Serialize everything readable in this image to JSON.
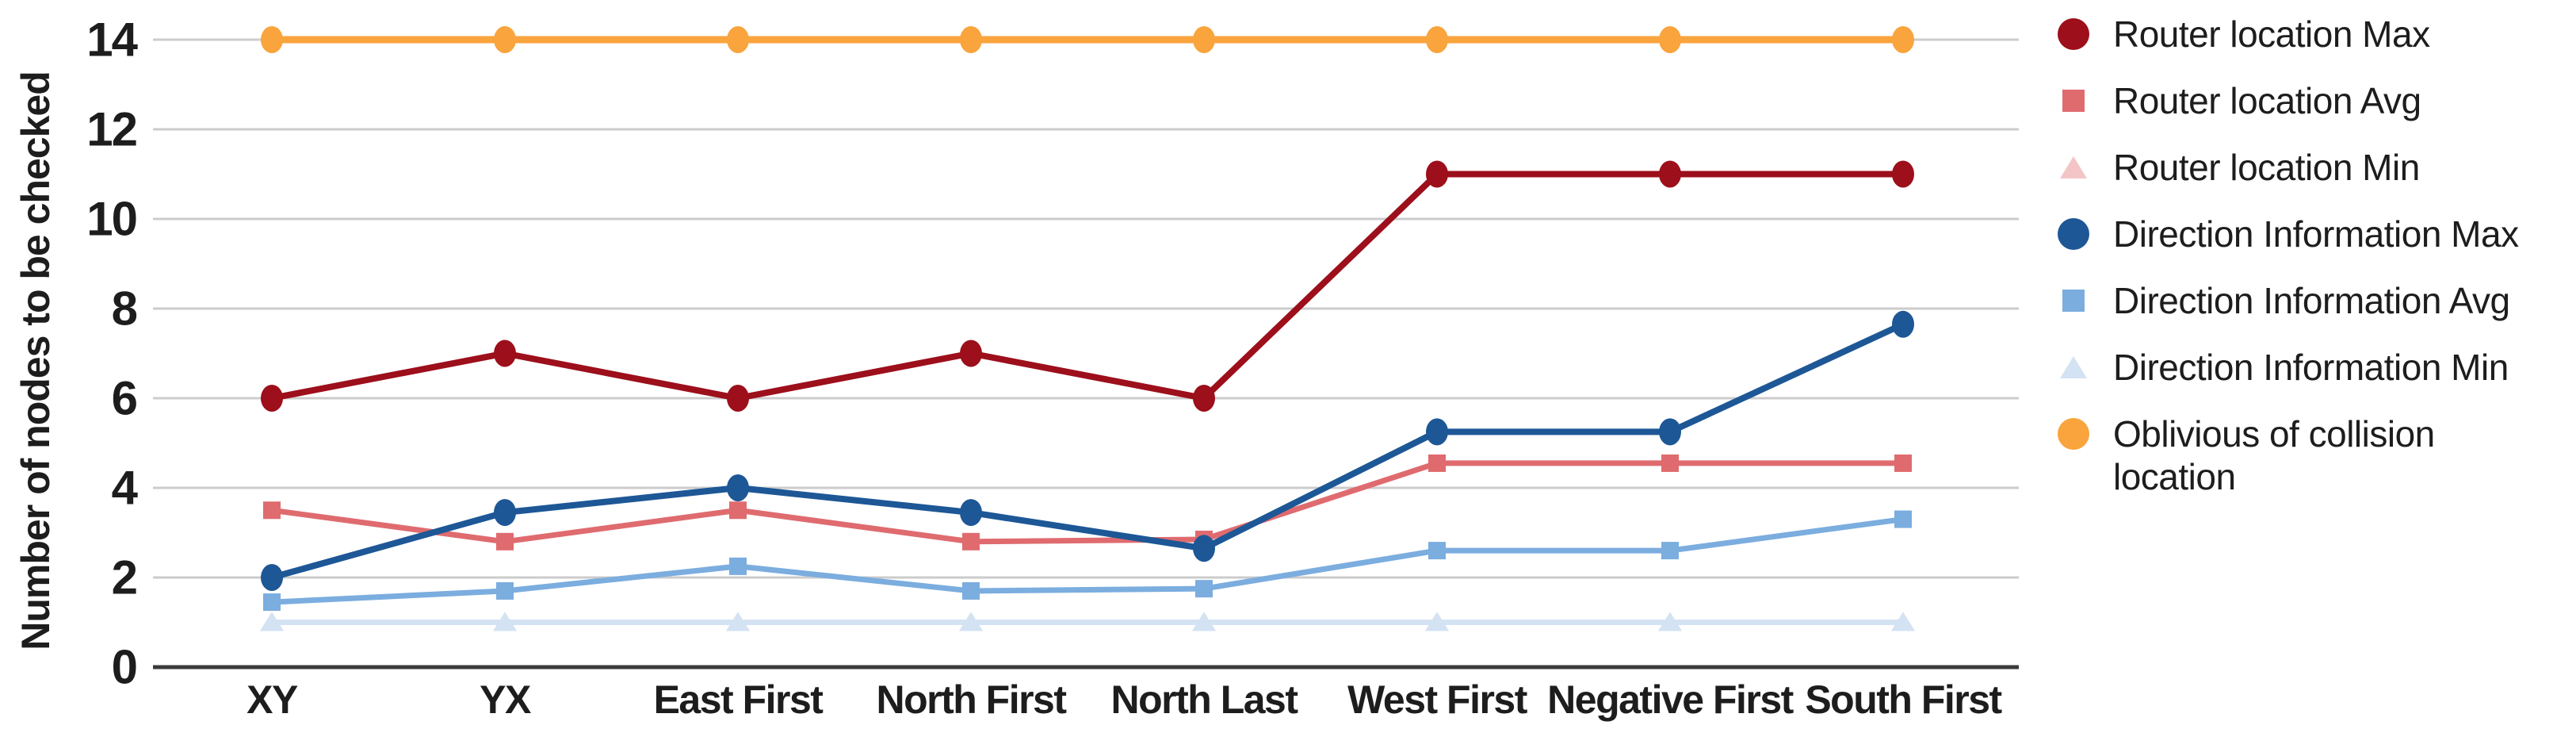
{
  "figure": {
    "background": "#ffffff",
    "text_color": "#1d1d1d",
    "gridline_color": "#cccccc",
    "axis_line_color": "#3b3b3b"
  },
  "chart_data": {
    "type": "line",
    "title": "",
    "xlabel": "",
    "ylabel": "Number of nodes to be checked",
    "ylim": [
      0,
      14
    ],
    "y_ticks": [
      0,
      2,
      4,
      6,
      8,
      10,
      12,
      14
    ],
    "grid": true,
    "legend_position": "right",
    "categories": [
      "XY",
      "YX",
      "East First",
      "North First",
      "North Last",
      "West First",
      "Negative First",
      "South First"
    ],
    "series": [
      {
        "name": "Router location Max",
        "marker": "circle",
        "color": "#9c0f1b",
        "values": [
          6,
          7,
          6,
          7,
          6,
          11,
          11,
          11
        ]
      },
      {
        "name": "Router location Avg",
        "marker": "square",
        "color": "#df6b6f",
        "values": [
          3.5,
          2.8,
          3.5,
          2.8,
          2.85,
          4.55,
          4.55,
          4.55
        ]
      },
      {
        "name": "Router location Min",
        "marker": "triangle",
        "color": "#f3c5c7",
        "values": [
          1,
          1,
          1,
          1,
          1,
          1,
          1,
          1
        ]
      },
      {
        "name": "Direction Information Max",
        "marker": "circle",
        "color": "#1d5796",
        "values": [
          2,
          3.45,
          4,
          3.45,
          2.65,
          5.25,
          5.25,
          7.65
        ]
      },
      {
        "name": "Direction Information Avg",
        "marker": "square",
        "color": "#7baddf",
        "values": [
          1.45,
          1.7,
          2.25,
          1.7,
          1.75,
          2.6,
          2.6,
          3.3
        ]
      },
      {
        "name": "Direction Information Min",
        "marker": "triangle",
        "color": "#d4e3f3",
        "values": [
          1,
          1,
          1,
          1,
          1,
          1,
          1,
          1
        ]
      },
      {
        "name": "Oblivious of collision location",
        "marker": "circle",
        "color": "#f9a43c",
        "values": [
          14,
          14,
          14,
          14,
          14,
          14,
          14,
          14
        ]
      }
    ]
  }
}
